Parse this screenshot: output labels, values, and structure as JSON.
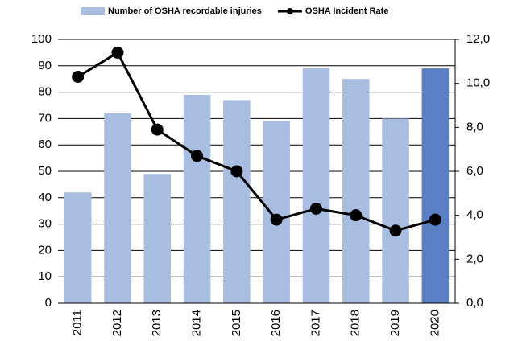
{
  "chart_data": {
    "type": "bar",
    "categories": [
      "2011",
      "2012",
      "2013",
      "2014",
      "2015",
      "2016",
      "2017",
      "2018",
      "2019",
      "2020"
    ],
    "series": [
      {
        "name": "Number of OSHA recordable injuries",
        "type": "bar",
        "color": "#a9bde0",
        "colors": [
          "#a9bde0",
          "#a9bde0",
          "#a9bde0",
          "#a9bde0",
          "#a9bde0",
          "#a9bde0",
          "#a9bde0",
          "#a9bde0",
          "#a9bde0",
          "#5b7fc4"
        ],
        "values": [
          42,
          72,
          49,
          79,
          77,
          69,
          89,
          85,
          70,
          89
        ]
      },
      {
        "name": "OSHA Incident Rate",
        "type": "line",
        "color": "#000000",
        "axis": "y2",
        "values": [
          10.3,
          11.4,
          7.9,
          6.7,
          6.0,
          3.8,
          4.3,
          4.0,
          3.3,
          3.8
        ]
      }
    ],
    "ylim": [
      0,
      100
    ],
    "yticks": [
      0,
      10,
      20,
      30,
      40,
      50,
      60,
      70,
      80,
      90,
      100
    ],
    "y2lim": [
      0,
      12
    ],
    "y2ticks": [
      {
        "value": 0,
        "label": "0,0"
      },
      {
        "value": 2,
        "label": "2,0"
      },
      {
        "value": 4,
        "label": "4,0"
      },
      {
        "value": 6,
        "label": "6,0"
      },
      {
        "value": 8,
        "label": "8,0"
      },
      {
        "value": 10,
        "label": "10,0"
      },
      {
        "value": 12,
        "label": "12,0"
      }
    ],
    "grid": true,
    "legend": "top"
  }
}
